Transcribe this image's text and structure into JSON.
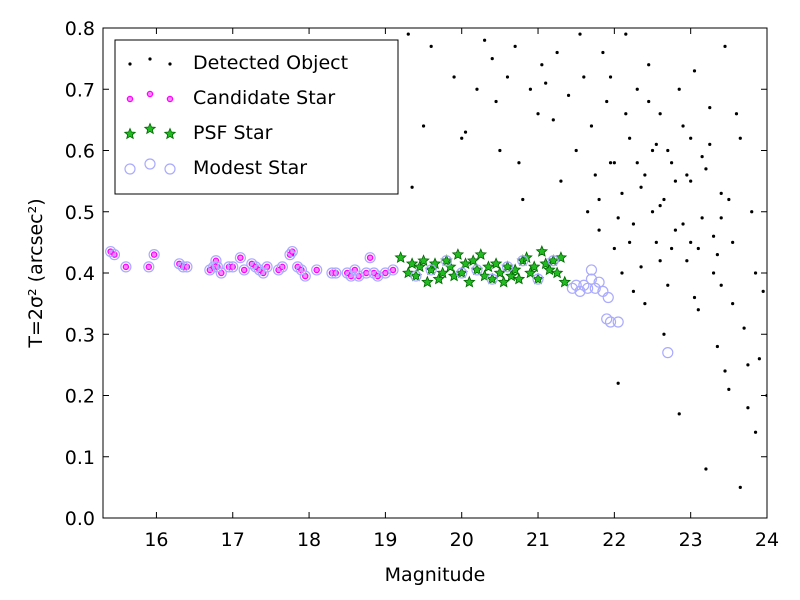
{
  "chart_data": {
    "type": "scatter",
    "xlabel": "Magnitude",
    "ylabel": "T=2σ² (arcsec²)",
    "xlim": [
      15.3,
      24
    ],
    "ylim": [
      0,
      0.8
    ],
    "xticks": [
      16,
      17,
      18,
      19,
      20,
      21,
      22,
      23,
      24
    ],
    "yticks": [
      {
        "value": 0,
        "label": "0.0"
      },
      0.1,
      0.2,
      0.3,
      0.4,
      0.5,
      0.6,
      0.7,
      0.8
    ],
    "legend": "upper left",
    "series": [
      {
        "name": "Detected Object",
        "marker": "dot",
        "color": "#000000",
        "x": [
          19.3,
          19.5,
          19.35,
          19.6,
          19.9,
          20.0,
          20.05,
          20.2,
          20.3,
          20.4,
          20.45,
          20.5,
          20.6,
          20.7,
          20.75,
          20.8,
          20.9,
          21.0,
          21.05,
          21.1,
          21.2,
          21.25,
          21.3,
          21.4,
          21.5,
          21.55,
          21.6,
          21.65,
          21.7,
          21.75,
          21.8,
          21.85,
          21.9,
          21.95,
          22.0,
          22.05,
          22.1,
          22.15,
          22.2,
          22.25,
          22.3,
          22.35,
          22.4,
          22.45,
          22.5,
          22.55,
          22.6,
          22.65,
          22.7,
          22.75,
          22.8,
          22.85,
          22.9,
          22.95,
          23.0,
          23.05,
          23.1,
          23.15,
          23.2,
          23.25,
          23.3,
          23.35,
          23.4,
          23.45,
          23.5,
          23.55,
          23.6,
          23.65,
          23.7,
          23.75,
          23.8,
          23.85,
          23.9,
          23.95,
          24.0,
          22.1,
          22.2,
          22.3,
          22.4,
          22.5,
          22.6,
          22.7,
          22.8,
          22.9,
          23.0,
          23.1,
          23.2,
          23.3,
          23.4,
          23.5,
          22.0,
          22.15,
          22.35,
          22.55,
          22.75,
          22.95,
          23.15,
          23.35,
          23.55,
          23.75,
          21.95,
          22.45,
          22.85,
          23.25,
          23.65,
          22.25,
          22.65,
          23.05,
          23.45,
          23.85,
          21.8,
          22.05,
          22.6,
          23.0,
          23.4,
          17.78
        ],
        "values": [
          0.79,
          0.64,
          0.54,
          0.77,
          0.72,
          0.62,
          0.63,
          0.7,
          0.78,
          0.75,
          0.68,
          0.6,
          0.72,
          0.77,
          0.58,
          0.52,
          0.7,
          0.66,
          0.74,
          0.71,
          0.65,
          0.76,
          0.55,
          0.69,
          0.6,
          0.79,
          0.72,
          0.5,
          0.64,
          0.56,
          0.47,
          0.76,
          0.68,
          0.58,
          0.44,
          0.22,
          0.53,
          0.79,
          0.62,
          0.48,
          0.7,
          0.41,
          0.56,
          0.74,
          0.6,
          0.45,
          0.66,
          0.52,
          0.38,
          0.58,
          0.47,
          0.17,
          0.64,
          0.42,
          0.55,
          0.73,
          0.34,
          0.49,
          0.08,
          0.61,
          0.4,
          0.28,
          0.53,
          0.77,
          0.21,
          0.45,
          0.66,
          0.05,
          0.31,
          0.18,
          0.5,
          0.14,
          0.26,
          0.37,
          0.2,
          0.4,
          0.45,
          0.58,
          0.35,
          0.5,
          0.42,
          0.6,
          0.55,
          0.48,
          0.62,
          0.44,
          0.57,
          0.46,
          0.38,
          0.52,
          0.58,
          0.66,
          0.54,
          0.61,
          0.44,
          0.56,
          0.59,
          0.43,
          0.35,
          0.25,
          0.72,
          0.68,
          0.7,
          0.67,
          0.62,
          0.37,
          0.3,
          0.36,
          0.24,
          0.4,
          0.52,
          0.49,
          0.51,
          0.45,
          0.49,
          0.43
        ]
      },
      {
        "name": "Candidate Star",
        "marker": "circle",
        "color": "#ff00ff",
        "x": [
          15.4,
          15.45,
          15.6,
          15.9,
          15.97,
          16.3,
          16.35,
          16.4,
          16.7,
          16.75,
          16.78,
          16.8,
          16.85,
          16.95,
          17.0,
          17.1,
          17.15,
          17.25,
          17.3,
          17.35,
          17.4,
          17.45,
          17.6,
          17.65,
          17.75,
          17.78,
          17.85,
          17.9,
          17.95,
          18.1,
          18.3,
          18.35,
          18.5,
          18.55,
          18.6,
          18.65,
          18.75,
          18.8,
          18.85,
          18.9,
          19.0,
          19.1
        ],
        "values": [
          0.435,
          0.43,
          0.41,
          0.41,
          0.43,
          0.415,
          0.41,
          0.41,
          0.405,
          0.41,
          0.42,
          0.41,
          0.4,
          0.41,
          0.41,
          0.425,
          0.405,
          0.415,
          0.41,
          0.405,
          0.4,
          0.41,
          0.405,
          0.41,
          0.43,
          0.435,
          0.41,
          0.405,
          0.395,
          0.405,
          0.4,
          0.4,
          0.4,
          0.395,
          0.405,
          0.395,
          0.4,
          0.425,
          0.4,
          0.395,
          0.4,
          0.405
        ]
      },
      {
        "name": "PSF Star",
        "marker": "star",
        "color": "#22bb22",
        "x": [
          19.2,
          19.3,
          19.35,
          19.4,
          19.45,
          19.5,
          19.55,
          19.6,
          19.65,
          19.7,
          19.75,
          19.8,
          19.85,
          19.9,
          19.95,
          20.0,
          20.05,
          20.1,
          20.15,
          20.2,
          20.25,
          20.3,
          20.35,
          20.4,
          20.45,
          20.5,
          20.55,
          20.6,
          20.65,
          20.7,
          20.75,
          20.8,
          20.85,
          20.9,
          20.95,
          21.0,
          21.05,
          21.1,
          21.15,
          21.2,
          21.25,
          21.3,
          21.35
        ],
        "values": [
          0.425,
          0.4,
          0.415,
          0.395,
          0.41,
          0.42,
          0.385,
          0.405,
          0.415,
          0.39,
          0.4,
          0.42,
          0.41,
          0.395,
          0.43,
          0.4,
          0.415,
          0.385,
          0.42,
          0.405,
          0.43,
          0.395,
          0.41,
          0.39,
          0.415,
          0.4,
          0.385,
          0.41,
          0.395,
          0.405,
          0.39,
          0.42,
          0.425,
          0.4,
          0.41,
          0.39,
          0.435,
          0.415,
          0.405,
          0.42,
          0.4,
          0.425,
          0.385
        ]
      },
      {
        "name": "Modest Star",
        "marker": "ring",
        "color": "#aaaaff",
        "x": [
          15.4,
          15.45,
          15.6,
          15.9,
          15.97,
          16.3,
          16.35,
          16.4,
          16.7,
          16.75,
          16.78,
          16.8,
          16.85,
          16.95,
          17.0,
          17.1,
          17.15,
          17.25,
          17.3,
          17.35,
          17.4,
          17.45,
          17.6,
          17.65,
          17.75,
          17.78,
          17.85,
          17.9,
          17.95,
          18.1,
          18.3,
          18.35,
          18.5,
          18.55,
          18.6,
          18.65,
          18.75,
          18.8,
          18.85,
          18.9,
          19.0,
          19.1,
          19.4,
          19.6,
          19.8,
          20.0,
          20.2,
          20.4,
          20.6,
          20.8,
          21.0,
          21.2,
          21.45,
          21.5,
          21.55,
          21.6,
          21.65,
          21.7,
          21.7,
          21.75,
          21.8,
          21.85,
          21.9,
          21.95,
          21.92,
          22.05,
          22.7
        ],
        "values": [
          0.435,
          0.43,
          0.41,
          0.41,
          0.43,
          0.415,
          0.41,
          0.41,
          0.405,
          0.41,
          0.42,
          0.41,
          0.4,
          0.41,
          0.41,
          0.425,
          0.405,
          0.415,
          0.41,
          0.405,
          0.4,
          0.41,
          0.405,
          0.41,
          0.43,
          0.435,
          0.41,
          0.405,
          0.395,
          0.405,
          0.4,
          0.4,
          0.4,
          0.395,
          0.405,
          0.395,
          0.4,
          0.425,
          0.4,
          0.395,
          0.4,
          0.405,
          0.395,
          0.405,
          0.42,
          0.4,
          0.405,
          0.39,
          0.41,
          0.42,
          0.39,
          0.42,
          0.375,
          0.38,
          0.37,
          0.38,
          0.375,
          0.39,
          0.405,
          0.375,
          0.385,
          0.37,
          0.325,
          0.32,
          0.36,
          0.32,
          0.27
        ]
      }
    ]
  }
}
